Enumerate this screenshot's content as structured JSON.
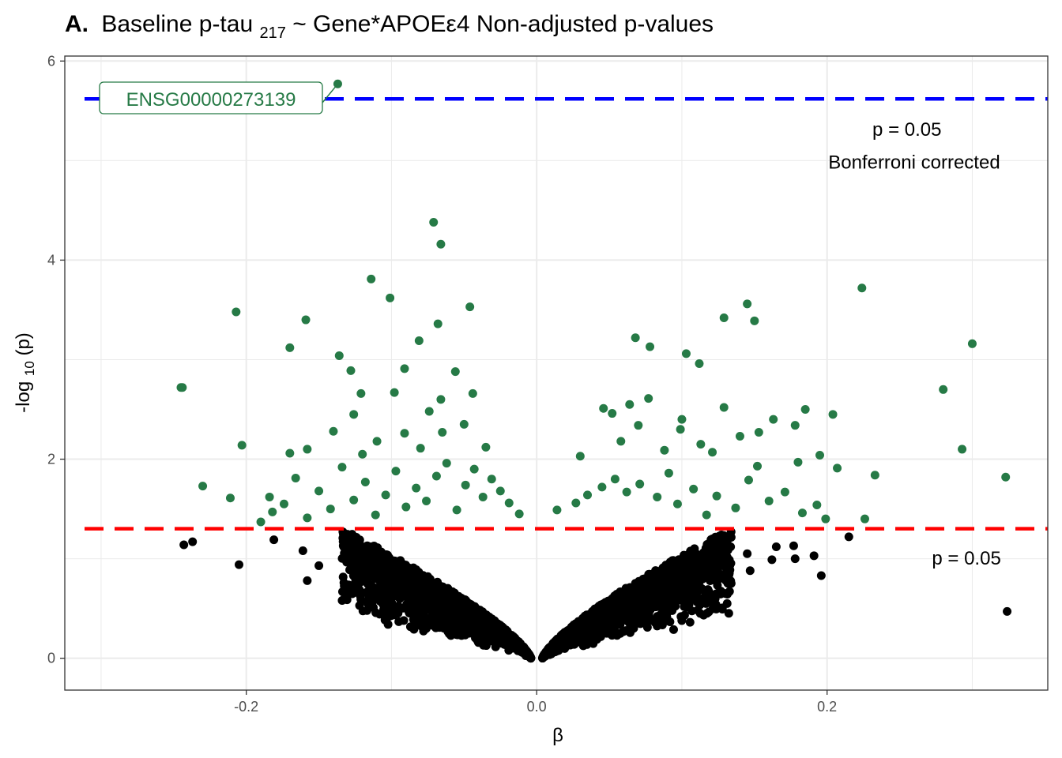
{
  "chart_data": {
    "type": "scatter",
    "title": {
      "panel": "A.",
      "before_sub": "Baseline p-tau",
      "sub": "217",
      "after_sub": " ~ Gene*APOEε4 Non-adjusted p-values"
    },
    "xlabel": "β",
    "ylabel": {
      "before": "-log",
      "sub": "10",
      "after": "(p)"
    },
    "xlim": [
      -0.325,
      0.352
    ],
    "ylim": [
      -0.32,
      6.05
    ],
    "xticks": [
      -0.2,
      0.0,
      0.2
    ],
    "xtick_labels": [
      "-0.2",
      "0.0",
      "0.2"
    ],
    "yticks": [
      0,
      2,
      4,
      6
    ],
    "ytick_labels": [
      "0",
      "2",
      "4",
      "6"
    ],
    "grid": true,
    "colors": {
      "significant": "#267a46",
      "non_significant": "#000000",
      "bonferroni_line": "#0000ff",
      "nominal_line": "#ff0000",
      "grid": "#ebebeb",
      "panel_border": "#333333"
    },
    "thresholds": [
      {
        "name": "bonferroni",
        "y": 5.62,
        "label_lines": [
          "p = 0.05",
          "Bonferroni corrected"
        ],
        "style": "dashed",
        "color": "#0000ff"
      },
      {
        "name": "nominal",
        "y": 1.301,
        "label_lines": [
          "p = 0.05"
        ],
        "style": "dashed",
        "color": "#ff0000"
      }
    ],
    "labeled_point": {
      "label": "ENSG00000273139",
      "x": -0.137,
      "y": 5.77
    },
    "series": [
      {
        "group": "significant",
        "color": "#267a46",
        "points": [
          [
            -0.137,
            5.77
          ],
          [
            -0.071,
            4.38
          ],
          [
            -0.066,
            4.16
          ],
          [
            -0.114,
            3.81
          ],
          [
            -0.101,
            3.62
          ],
          [
            -0.207,
            3.48
          ],
          [
            -0.159,
            3.4
          ],
          [
            -0.068,
            3.36
          ],
          [
            -0.046,
            3.53
          ],
          [
            -0.081,
            3.19
          ],
          [
            -0.17,
            3.12
          ],
          [
            -0.136,
            3.04
          ],
          [
            -0.091,
            2.91
          ],
          [
            -0.056,
            2.88
          ],
          [
            -0.128,
            2.89
          ],
          [
            -0.245,
            2.72
          ],
          [
            -0.098,
            2.67
          ],
          [
            -0.044,
            2.66
          ],
          [
            -0.121,
            2.66
          ],
          [
            -0.244,
            2.72
          ],
          [
            -0.211,
            1.61
          ],
          [
            -0.23,
            1.73
          ],
          [
            -0.203,
            2.14
          ],
          [
            -0.126,
            2.45
          ],
          [
            -0.091,
            2.26
          ],
          [
            -0.184,
            1.62
          ],
          [
            -0.17,
            2.06
          ],
          [
            -0.158,
            2.1
          ],
          [
            -0.066,
            2.6
          ],
          [
            -0.074,
            2.48
          ],
          [
            0.224,
            3.72
          ],
          [
            0.15,
            3.39
          ],
          [
            0.145,
            3.56
          ],
          [
            0.129,
            3.42
          ],
          [
            0.3,
            3.16
          ],
          [
            0.068,
            3.22
          ],
          [
            0.078,
            3.13
          ],
          [
            0.103,
            3.06
          ],
          [
            0.112,
            2.96
          ],
          [
            0.28,
            2.7
          ],
          [
            0.077,
            2.61
          ],
          [
            0.064,
            2.55
          ],
          [
            0.046,
            2.51
          ],
          [
            0.052,
            2.46
          ],
          [
            0.163,
            2.4
          ],
          [
            0.204,
            2.45
          ],
          [
            0.129,
            2.52
          ],
          [
            0.185,
            2.5
          ],
          [
            0.099,
            2.3
          ],
          [
            0.293,
            2.1
          ],
          [
            0.178,
            2.34
          ],
          [
            0.153,
            2.27
          ],
          [
            0.14,
            2.23
          ],
          [
            0.121,
            2.07
          ],
          [
            0.207,
            1.91
          ],
          [
            0.233,
            1.84
          ],
          [
            0.323,
            1.82
          ],
          [
            0.18,
            1.97
          ],
          [
            0.195,
            2.04
          ],
          [
            0.226,
            1.4
          ],
          [
            0.014,
            1.49
          ],
          [
            0.027,
            1.56
          ],
          [
            0.035,
            1.64
          ],
          [
            0.045,
            1.72
          ],
          [
            0.054,
            1.8
          ],
          [
            0.062,
            1.67
          ],
          [
            0.071,
            1.75
          ],
          [
            0.083,
            1.62
          ],
          [
            0.091,
            1.86
          ],
          [
            0.097,
            1.55
          ],
          [
            0.108,
            1.7
          ],
          [
            0.117,
            1.44
          ],
          [
            0.124,
            1.63
          ],
          [
            0.137,
            1.51
          ],
          [
            0.146,
            1.79
          ],
          [
            0.16,
            1.58
          ],
          [
            0.171,
            1.67
          ],
          [
            0.183,
            1.46
          ],
          [
            0.193,
            1.54
          ],
          [
            0.199,
            1.4
          ],
          [
            -0.012,
            1.45
          ],
          [
            -0.019,
            1.56
          ],
          [
            -0.025,
            1.68
          ],
          [
            -0.031,
            1.8
          ],
          [
            -0.037,
            1.62
          ],
          [
            -0.043,
            1.9
          ],
          [
            -0.049,
            1.74
          ],
          [
            -0.055,
            1.49
          ],
          [
            -0.062,
            1.96
          ],
          [
            -0.069,
            1.83
          ],
          [
            -0.076,
            1.58
          ],
          [
            -0.083,
            1.71
          ],
          [
            -0.09,
            1.52
          ],
          [
            -0.097,
            1.88
          ],
          [
            -0.104,
            1.64
          ],
          [
            -0.111,
            1.44
          ],
          [
            -0.118,
            1.77
          ],
          [
            -0.126,
            1.59
          ],
          [
            -0.134,
            1.92
          ],
          [
            -0.142,
            1.5
          ],
          [
            -0.15,
            1.68
          ],
          [
            -0.158,
            1.41
          ],
          [
            -0.166,
            1.81
          ],
          [
            -0.174,
            1.55
          ],
          [
            -0.182,
            1.47
          ],
          [
            -0.19,
            1.37
          ],
          [
            -0.14,
            2.28
          ],
          [
            -0.11,
            2.18
          ],
          [
            -0.065,
            2.27
          ],
          [
            -0.035,
            2.12
          ],
          [
            0.03,
            2.03
          ],
          [
            0.058,
            2.18
          ],
          [
            0.088,
            2.09
          ],
          [
            0.113,
            2.15
          ],
          [
            0.152,
            1.93
          ],
          [
            -0.08,
            2.11
          ],
          [
            -0.05,
            2.35
          ],
          [
            -0.12,
            2.05
          ],
          [
            0.07,
            2.34
          ],
          [
            0.1,
            2.4
          ]
        ]
      },
      {
        "group": "non_significant",
        "color": "#000000",
        "points": [
          [
            -0.243,
            1.14
          ],
          [
            -0.237,
            1.17
          ],
          [
            -0.205,
            0.94
          ],
          [
            -0.181,
            1.19
          ],
          [
            -0.161,
            1.08
          ],
          [
            -0.15,
            0.93
          ],
          [
            -0.158,
            0.78
          ],
          [
            -0.134,
            0.58
          ],
          [
            -0.122,
            0.53
          ],
          [
            -0.103,
            0.43
          ],
          [
            -0.085,
            0.46
          ],
          [
            -0.073,
            0.38
          ],
          [
            0.324,
            0.47
          ],
          [
            0.196,
            0.83
          ],
          [
            0.215,
            1.22
          ],
          [
            0.191,
            1.03
          ],
          [
            0.177,
            1.13
          ],
          [
            0.162,
            0.99
          ],
          [
            0.147,
            0.88
          ],
          [
            0.133,
            0.78
          ],
          [
            0.118,
            0.69
          ],
          [
            0.104,
            0.63
          ],
          [
            0.09,
            0.54
          ],
          [
            0.075,
            0.47
          ],
          [
            0.06,
            0.39
          ],
          [
            0.178,
            1.0
          ],
          [
            0.165,
            1.12
          ],
          [
            0.145,
            1.05
          ],
          [
            0.128,
            0.93
          ],
          [
            0.11,
            0.84
          ]
        ]
      }
    ]
  }
}
